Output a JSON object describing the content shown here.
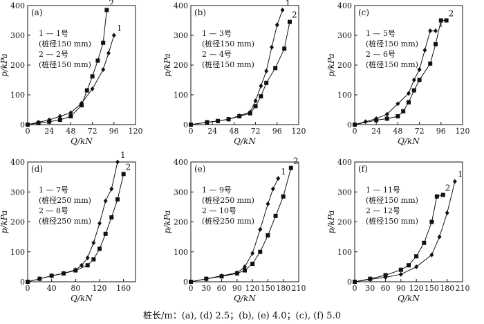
{
  "caption": "桩长/m：(a), (d) 2.5；(b), (e) 4.0；(c), (f) 5.0",
  "chart_data": [
    {
      "type": "line",
      "label": "(a)",
      "xlabel": "Q/kN",
      "ylabel": "p/kPa",
      "xlim": [
        0,
        120
      ],
      "ylim": [
        0,
        400
      ],
      "xticks": [
        0,
        24,
        48,
        72,
        96,
        120
      ],
      "yticks": [
        0,
        100,
        200,
        300,
        400
      ],
      "legend": [
        "1 — 1号",
        "(桩径150 mm)",
        "2 — 2号",
        "(桩径150 mm)"
      ],
      "series": [
        {
          "name": "1",
          "marker": "diamond",
          "x": [
            0,
            12,
            24,
            36,
            48,
            60,
            72,
            84,
            90,
            96
          ],
          "y": [
            0,
            8,
            16,
            28,
            40,
            72,
            120,
            185,
            240,
            300
          ]
        },
        {
          "name": "2",
          "marker": "square",
          "x": [
            0,
            12,
            24,
            36,
            48,
            60,
            66,
            72,
            78,
            84,
            88
          ],
          "y": [
            0,
            5,
            10,
            16,
            28,
            65,
            115,
            162,
            215,
            275,
            385
          ]
        }
      ]
    },
    {
      "type": "line",
      "label": "(b)",
      "xlabel": "Q/kN",
      "ylabel": "p/kPa",
      "xlim": [
        0,
        120
      ],
      "ylim": [
        0,
        400
      ],
      "xticks": [
        0,
        24,
        48,
        72,
        96,
        120
      ],
      "yticks": [
        0,
        100,
        200,
        300,
        400
      ],
      "legend": [
        "1 — 3号",
        "(桩径150 mm)",
        "2 — 4号",
        "(桩径150 mm)"
      ],
      "series": [
        {
          "name": "1",
          "marker": "diamond",
          "x": [
            0,
            18,
            30,
            42,
            54,
            66,
            72,
            78,
            84,
            90,
            96,
            102
          ],
          "y": [
            0,
            8,
            12,
            18,
            30,
            42,
            80,
            130,
            180,
            260,
            335,
            385
          ]
        },
        {
          "name": "2",
          "marker": "square",
          "x": [
            0,
            18,
            30,
            42,
            54,
            66,
            72,
            78,
            84,
            94,
            104,
            110
          ],
          "y": [
            0,
            8,
            12,
            18,
            28,
            38,
            62,
            95,
            140,
            190,
            255,
            345
          ]
        }
      ]
    },
    {
      "type": "line",
      "label": "(c)",
      "xlabel": "Q/kN",
      "ylabel": "p/kPa",
      "xlim": [
        0,
        120
      ],
      "ylim": [
        0,
        400
      ],
      "xticks": [
        0,
        24,
        48,
        72,
        96,
        120
      ],
      "yticks": [
        0,
        100,
        200,
        300,
        400
      ],
      "legend": [
        "1 — 5号",
        "(桩径150 mm)",
        "2 — 6号",
        "(桩径150 mm)"
      ],
      "series": [
        {
          "name": "1",
          "marker": "diamond",
          "x": [
            0,
            12,
            24,
            36,
            48,
            60,
            66,
            72,
            78,
            84,
            90
          ],
          "y": [
            0,
            10,
            20,
            35,
            70,
            105,
            150,
            185,
            250,
            315,
            315
          ]
        },
        {
          "name": "2",
          "marker": "square",
          "x": [
            0,
            24,
            36,
            48,
            54,
            60,
            66,
            72,
            84,
            90,
            96,
            102
          ],
          "y": [
            0,
            15,
            20,
            28,
            45,
            75,
            115,
            150,
            205,
            270,
            350,
            350
          ]
        }
      ]
    },
    {
      "type": "line",
      "label": "(d)",
      "xlabel": "Q/kN",
      "ylabel": "p/kPa",
      "xlim": [
        0,
        180
      ],
      "ylim": [
        0,
        400
      ],
      "xticks": [
        0,
        40,
        80,
        120,
        160
      ],
      "yticks": [
        0,
        100,
        200,
        300,
        400
      ],
      "legend": [
        "1 — 7号",
        "(桩径250 mm)",
        "2 — 8号",
        "(桩径250 mm)"
      ],
      "series": [
        {
          "name": "1",
          "marker": "diamond",
          "x": [
            0,
            20,
            40,
            60,
            80,
            90,
            100,
            110,
            120,
            130,
            140,
            150
          ],
          "y": [
            0,
            10,
            20,
            28,
            40,
            55,
            80,
            130,
            195,
            270,
            310,
            400
          ]
        },
        {
          "name": "2",
          "marker": "square",
          "x": [
            0,
            20,
            40,
            60,
            80,
            100,
            110,
            120,
            130,
            140,
            150,
            160
          ],
          "y": [
            0,
            10,
            20,
            28,
            38,
            55,
            75,
            110,
            160,
            215,
            275,
            360
          ]
        }
      ]
    },
    {
      "type": "line",
      "label": "(e)",
      "xlabel": "Q/kN",
      "ylabel": "p/kPa",
      "xlim": [
        0,
        210
      ],
      "ylim": [
        0,
        400
      ],
      "xticks": [
        0,
        30,
        60,
        90,
        120,
        150,
        180,
        210
      ],
      "yticks": [
        0,
        100,
        200,
        300,
        400
      ],
      "legend": [
        "1 — 9号",
        "(桩径250 mm)",
        "2 — 10号",
        "(桩径250 mm)"
      ],
      "series": [
        {
          "name": "1",
          "marker": "diamond",
          "x": [
            0,
            30,
            60,
            90,
            105,
            120,
            135,
            150,
            160,
            170
          ],
          "y": [
            0,
            10,
            20,
            30,
            50,
            95,
            175,
            260,
            310,
            345
          ]
        },
        {
          "name": "2",
          "marker": "square",
          "x": [
            0,
            30,
            60,
            90,
            105,
            120,
            135,
            150,
            165,
            180,
            195
          ],
          "y": [
            0,
            10,
            18,
            28,
            38,
            60,
            100,
            155,
            220,
            285,
            380
          ]
        }
      ]
    },
    {
      "type": "line",
      "label": "(f)",
      "xlabel": "Q/kN",
      "ylabel": "p/kPa",
      "xlim": [
        0,
        210
      ],
      "ylim": [
        0,
        400
      ],
      "xticks": [
        0,
        30,
        60,
        90,
        120,
        150,
        180,
        210
      ],
      "yticks": [
        0,
        100,
        200,
        300,
        400
      ],
      "legend": [
        "1 — 11号",
        "(桩径150 mm)",
        "2 — 12号",
        "(桩径150 mm)"
      ],
      "series": [
        {
          "name": "1",
          "marker": "diamond",
          "x": [
            0,
            30,
            60,
            90,
            120,
            150,
            165,
            180,
            195
          ],
          "y": [
            0,
            8,
            15,
            25,
            50,
            90,
            150,
            230,
            335
          ]
        },
        {
          "name": "2",
          "marker": "square",
          "x": [
            0,
            30,
            60,
            90,
            105,
            120,
            135,
            150,
            160,
            172
          ],
          "y": [
            0,
            10,
            22,
            40,
            55,
            85,
            130,
            200,
            285,
            290
          ]
        }
      ]
    }
  ]
}
